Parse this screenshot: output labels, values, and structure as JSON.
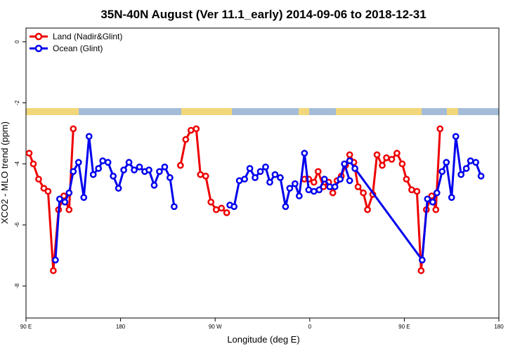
{
  "chart_data": {
    "type": "line",
    "title": "35N-40N August (Ver 11.1_early)   2014-09-06 to 2018-12-31",
    "xlabel": "Longitude (deg E)",
    "ylabel": "XCO2 - MLO trend (ppm)",
    "xlim": [
      90,
      540
    ],
    "ylim": [
      -9.05,
      0.45
    ],
    "x_ticks": [
      {
        "value": 90,
        "label": "90 E"
      },
      {
        "value": 180,
        "label": "180"
      },
      {
        "value": 270,
        "label": "90 W"
      },
      {
        "value": 360,
        "label": "0"
      },
      {
        "value": 450,
        "label": "90 E"
      },
      {
        "value": 540,
        "label": "180"
      }
    ],
    "y_ticks": [
      {
        "value": 0,
        "label": "0"
      },
      {
        "value": -2,
        "label": "-2"
      },
      {
        "value": -4,
        "label": "-4"
      },
      {
        "value": -6,
        "label": "-6"
      },
      {
        "value": -8,
        "label": "-8"
      }
    ],
    "legend_position": "top-left",
    "grid": false,
    "series": [
      {
        "name": "Land (Nadir&Glint)",
        "color": "#ee0000",
        "segments": [
          [
            [
              93,
              -3.65
            ],
            [
              97,
              -4.0
            ],
            [
              102,
              -4.5
            ],
            [
              107,
              -4.8
            ],
            [
              111,
              -4.9
            ],
            [
              116,
              -7.5
            ],
            [
              121,
              -5.5
            ],
            [
              126,
              -5.05
            ],
            [
              131,
              -5.5
            ],
            [
              135,
              -2.85
            ]
          ],
          [
            [
              237,
              -4.05
            ],
            [
              242,
              -3.2
            ],
            [
              247,
              -2.9
            ],
            [
              252,
              -2.85
            ],
            [
              256,
              -4.35
            ],
            [
              261,
              -4.4
            ],
            [
              266,
              -5.25
            ],
            [
              271,
              -5.5
            ],
            [
              276,
              -5.45
            ],
            [
              281,
              -5.6
            ]
          ],
          [
            [
              355,
              -4.5
            ],
            [
              359,
              -4.5
            ],
            [
              364,
              -4.6
            ],
            [
              368,
              -4.25
            ],
            [
              373,
              -4.75
            ],
            [
              378,
              -4.6
            ],
            [
              382,
              -4.95
            ],
            [
              386,
              -4.55
            ],
            [
              390,
              -4.4
            ],
            [
              394,
              -4.05
            ],
            [
              398,
              -3.7
            ],
            [
              402,
              -3.95
            ],
            [
              406,
              -4.75
            ],
            [
              411,
              -4.95
            ],
            [
              415,
              -5.5
            ],
            [
              420,
              -5.0
            ],
            [
              424,
              -3.7
            ],
            [
              429,
              -4.05
            ],
            [
              433,
              -3.8
            ],
            [
              438,
              -3.85
            ],
            [
              443,
              -3.65
            ],
            [
              448,
              -4.0
            ],
            [
              452,
              -4.5
            ],
            [
              457,
              -4.85
            ],
            [
              462,
              -4.9
            ],
            [
              466,
              -7.5
            ],
            [
              471,
              -5.5
            ],
            [
              476,
              -5.05
            ],
            [
              480,
              -5.5
            ],
            [
              484,
              -2.85
            ]
          ]
        ]
      },
      {
        "name": "Ocean (Glint)",
        "color": "#0000ee",
        "segments": [
          [
            [
              118,
              -7.15
            ],
            [
              122,
              -5.15
            ],
            [
              127,
              -5.25
            ],
            [
              131,
              -4.95
            ],
            [
              135,
              -4.25
            ],
            [
              140,
              -3.95
            ],
            [
              145,
              -5.1
            ],
            [
              150,
              -3.1
            ],
            [
              154,
              -4.35
            ],
            [
              159,
              -4.15
            ],
            [
              163,
              -3.9
            ],
            [
              168,
              -3.95
            ],
            [
              173,
              -4.4
            ],
            [
              178,
              -4.8
            ],
            [
              183,
              -4.2
            ],
            [
              188,
              -3.95
            ],
            [
              193,
              -4.2
            ],
            [
              198,
              -4.1
            ],
            [
              203,
              -4.25
            ],
            [
              207,
              -4.2
            ],
            [
              212,
              -4.7
            ],
            [
              217,
              -4.25
            ],
            [
              222,
              -4.1
            ],
            [
              227,
              -4.45
            ],
            [
              231,
              -5.4
            ]
          ],
          [
            [
              284,
              -5.35
            ],
            [
              288,
              -5.4
            ],
            [
              293,
              -4.55
            ],
            [
              298,
              -4.5
            ],
            [
              303,
              -4.15
            ],
            [
              308,
              -4.45
            ],
            [
              313,
              -4.25
            ],
            [
              318,
              -4.1
            ],
            [
              322,
              -4.6
            ],
            [
              327,
              -4.35
            ],
            [
              332,
              -4.45
            ],
            [
              337,
              -5.4
            ],
            [
              341,
              -4.8
            ],
            [
              346,
              -4.65
            ],
            [
              350,
              -5.05
            ],
            [
              355,
              -3.65
            ],
            [
              359,
              -4.85
            ],
            [
              364,
              -4.9
            ],
            [
              369,
              -4.85
            ],
            [
              374,
              -4.5
            ],
            [
              379,
              -4.75
            ],
            [
              384,
              -4.75
            ],
            [
              389,
              -4.5
            ],
            [
              393,
              -4.0
            ],
            [
              398,
              -4.55
            ]
          ],
          [
            [
              398,
              -3.9
            ],
            [
              403,
              -4.15
            ],
            [
              467,
              -7.15
            ],
            [
              472,
              -5.15
            ],
            [
              477,
              -5.25
            ],
            [
              481,
              -4.95
            ],
            [
              486,
              -4.25
            ],
            [
              490,
              -3.95
            ],
            [
              495,
              -5.1
            ],
            [
              499,
              -3.1
            ],
            [
              504,
              -4.35
            ],
            [
              509,
              -4.15
            ],
            [
              513,
              -3.9
            ],
            [
              518,
              -3.95
            ],
            [
              523,
              -4.4
            ]
          ]
        ]
      }
    ]
  }
}
